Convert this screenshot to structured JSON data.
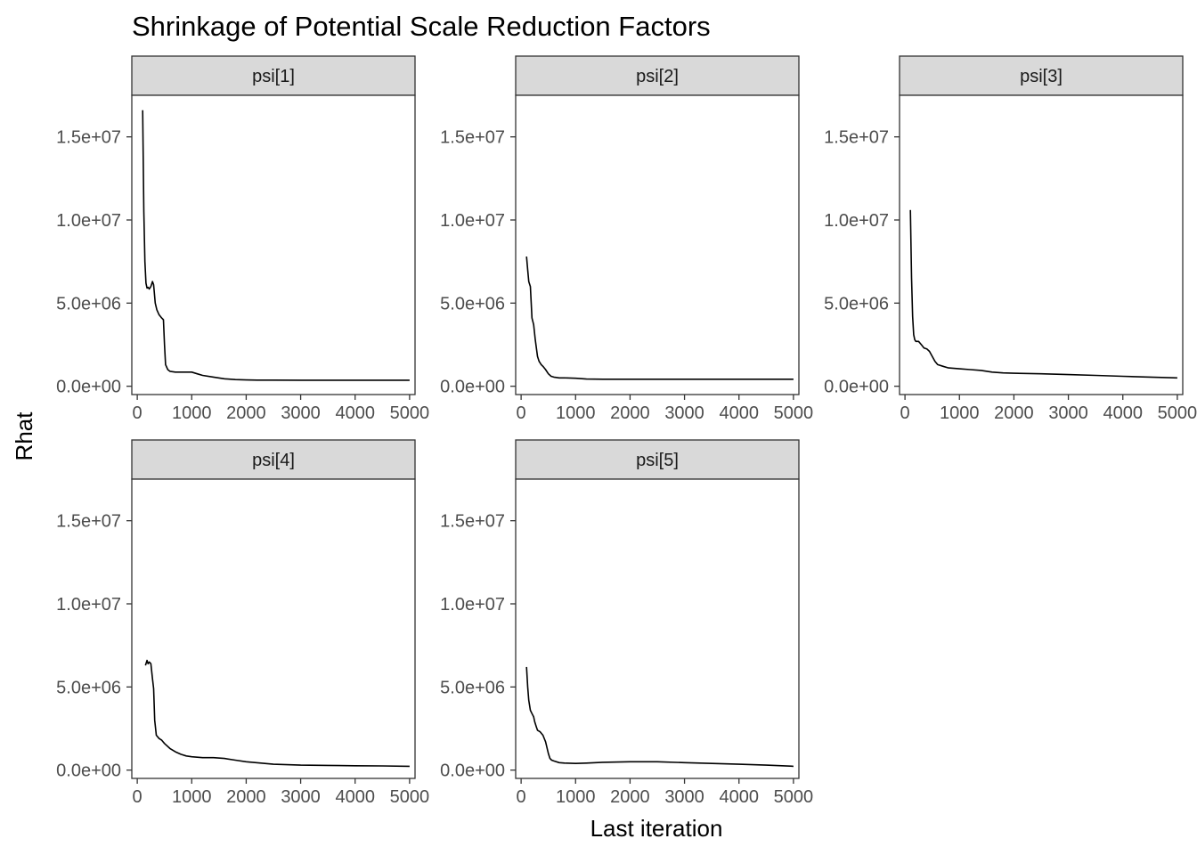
{
  "chart_data": {
    "type": "line",
    "title": "Shrinkage of Potential Scale Reduction Factors",
    "xlabel": "Last iteration",
    "ylabel": "Rhat",
    "xlim": [
      -100,
      5100
    ],
    "ylim": [
      -500000,
      17500000
    ],
    "x_ticks": [
      0,
      1000,
      2000,
      3000,
      4000,
      5000
    ],
    "x_tick_labels": [
      "0",
      "1000",
      "2000",
      "3000",
      "4000",
      "5000"
    ],
    "y_ticks": [
      0,
      5000000,
      10000000,
      15000000
    ],
    "y_tick_labels": [
      "0.0e+00",
      "5.0e+06",
      "1.0e+07",
      "1.5e+07"
    ],
    "grid": false,
    "line_color": "#000000",
    "panels": [
      {
        "name": "psi[1]",
        "x": [
          100,
          120,
          140,
          160,
          180,
          200,
          220,
          250,
          280,
          300,
          330,
          360,
          400,
          450,
          480,
          500,
          520,
          560,
          600,
          700,
          800,
          900,
          1000,
          1100,
          1200,
          1400,
          1600,
          1800,
          2000,
          2200,
          2500,
          3000,
          3500,
          4000,
          4500,
          5000
        ],
        "values": [
          16600000,
          10500000,
          7500000,
          6200000,
          5900000,
          5950000,
          5850000,
          6000000,
          6300000,
          6100000,
          5000000,
          4600000,
          4300000,
          4100000,
          4000000,
          2500000,
          1300000,
          1000000,
          900000,
          850000,
          850000,
          850000,
          850000,
          750000,
          650000,
          550000,
          450000,
          400000,
          380000,
          370000,
          370000,
          360000,
          360000,
          360000,
          360000,
          360000
        ]
      },
      {
        "name": "psi[2]",
        "x": [
          100,
          120,
          140,
          170,
          200,
          230,
          260,
          300,
          330,
          370,
          400,
          450,
          500,
          550,
          600,
          700,
          800,
          1000,
          1200,
          1500,
          2000,
          2500,
          3000,
          3500,
          4000,
          4500,
          5000
        ],
        "values": [
          7800000,
          7000000,
          6300000,
          6000000,
          4100000,
          3700000,
          2800000,
          1800000,
          1500000,
          1300000,
          1200000,
          1000000,
          750000,
          600000,
          550000,
          500000,
          500000,
          480000,
          430000,
          420000,
          420000,
          420000,
          420000,
          420000,
          420000,
          420000,
          420000
        ]
      },
      {
        "name": "psi[3]",
        "x": [
          100,
          120,
          140,
          160,
          180,
          200,
          250,
          300,
          350,
          400,
          450,
          500,
          550,
          600,
          700,
          800,
          1000,
          1200,
          1400,
          1600,
          1800,
          2000,
          2500,
          3000,
          3500,
          4000,
          4500,
          5000
        ],
        "values": [
          10600000,
          6500000,
          4200000,
          3100000,
          2800000,
          2700000,
          2700000,
          2500000,
          2300000,
          2250000,
          2100000,
          1800000,
          1500000,
          1300000,
          1200000,
          1100000,
          1050000,
          1000000,
          950000,
          850000,
          800000,
          780000,
          750000,
          700000,
          650000,
          600000,
          550000,
          500000
        ]
      },
      {
        "name": "psi[4]",
        "x": [
          150,
          180,
          200,
          220,
          250,
          280,
          300,
          320,
          350,
          400,
          450,
          500,
          600,
          700,
          800,
          900,
          1000,
          1200,
          1400,
          1600,
          1800,
          2000,
          2500,
          3000,
          3500,
          4000,
          4500,
          5000
        ],
        "values": [
          6300000,
          6600000,
          6400000,
          6500000,
          6400000,
          5500000,
          4900000,
          3000000,
          2100000,
          1900000,
          1800000,
          1600000,
          1300000,
          1100000,
          950000,
          850000,
          800000,
          750000,
          750000,
          700000,
          600000,
          500000,
          350000,
          300000,
          280000,
          260000,
          250000,
          230000
        ]
      },
      {
        "name": "psi[5]",
        "x": [
          100,
          120,
          140,
          170,
          200,
          230,
          250,
          280,
          300,
          350,
          400,
          450,
          500,
          530,
          560,
          600,
          700,
          800,
          1000,
          1200,
          1500,
          2000,
          2500,
          3000,
          3500,
          4000,
          4500,
          5000
        ],
        "values": [
          6200000,
          5000000,
          4200000,
          3600000,
          3400000,
          3200000,
          2900000,
          2600000,
          2400000,
          2300000,
          2100000,
          1700000,
          1000000,
          700000,
          600000,
          550000,
          450000,
          420000,
          400000,
          420000,
          470000,
          500000,
          500000,
          450000,
          400000,
          350000,
          300000,
          230000
        ]
      }
    ]
  }
}
